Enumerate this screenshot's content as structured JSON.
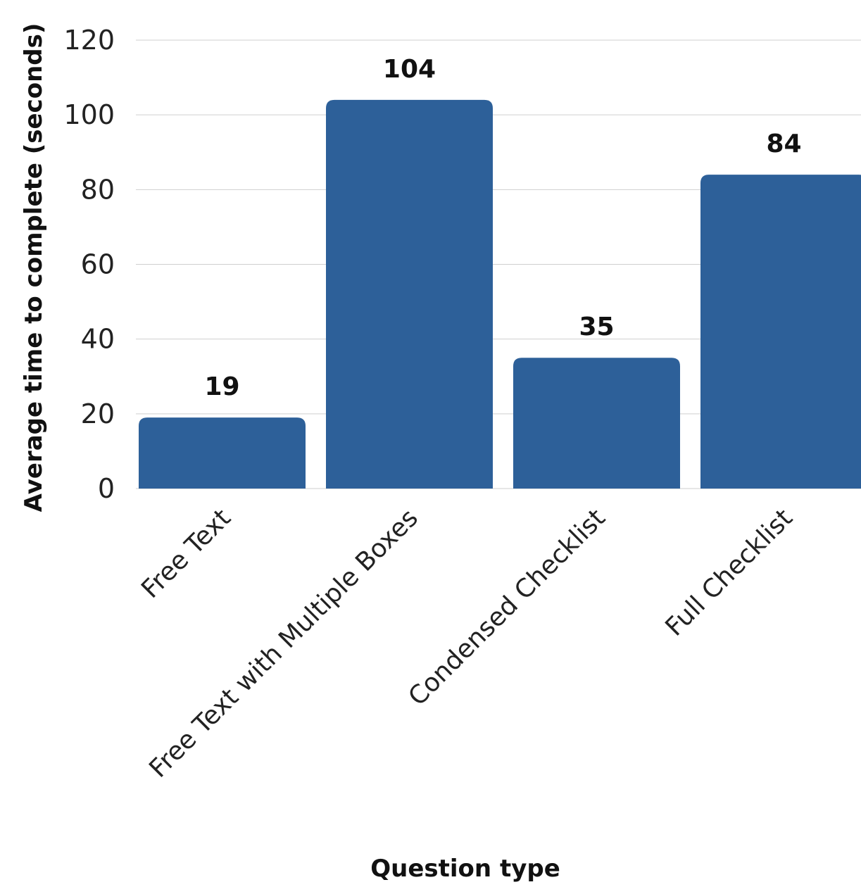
{
  "chart_data": {
    "type": "bar",
    "categories": [
      "Free Text",
      "Free Text with Multiple Boxes",
      "Condensed Checklist",
      "Full Checklist"
    ],
    "values": [
      19,
      104,
      35,
      84
    ],
    "data_labels": [
      "19",
      "104",
      "35",
      "84"
    ],
    "yticks": [
      "0",
      "20",
      "40",
      "60",
      "80",
      "100",
      "120"
    ],
    "ylim": [
      0,
      120
    ],
    "xlabel": "Question type",
    "ylabel": "Average time to complete (seconds)",
    "grid": "horizontal",
    "bar_color": "#2d6099"
  }
}
